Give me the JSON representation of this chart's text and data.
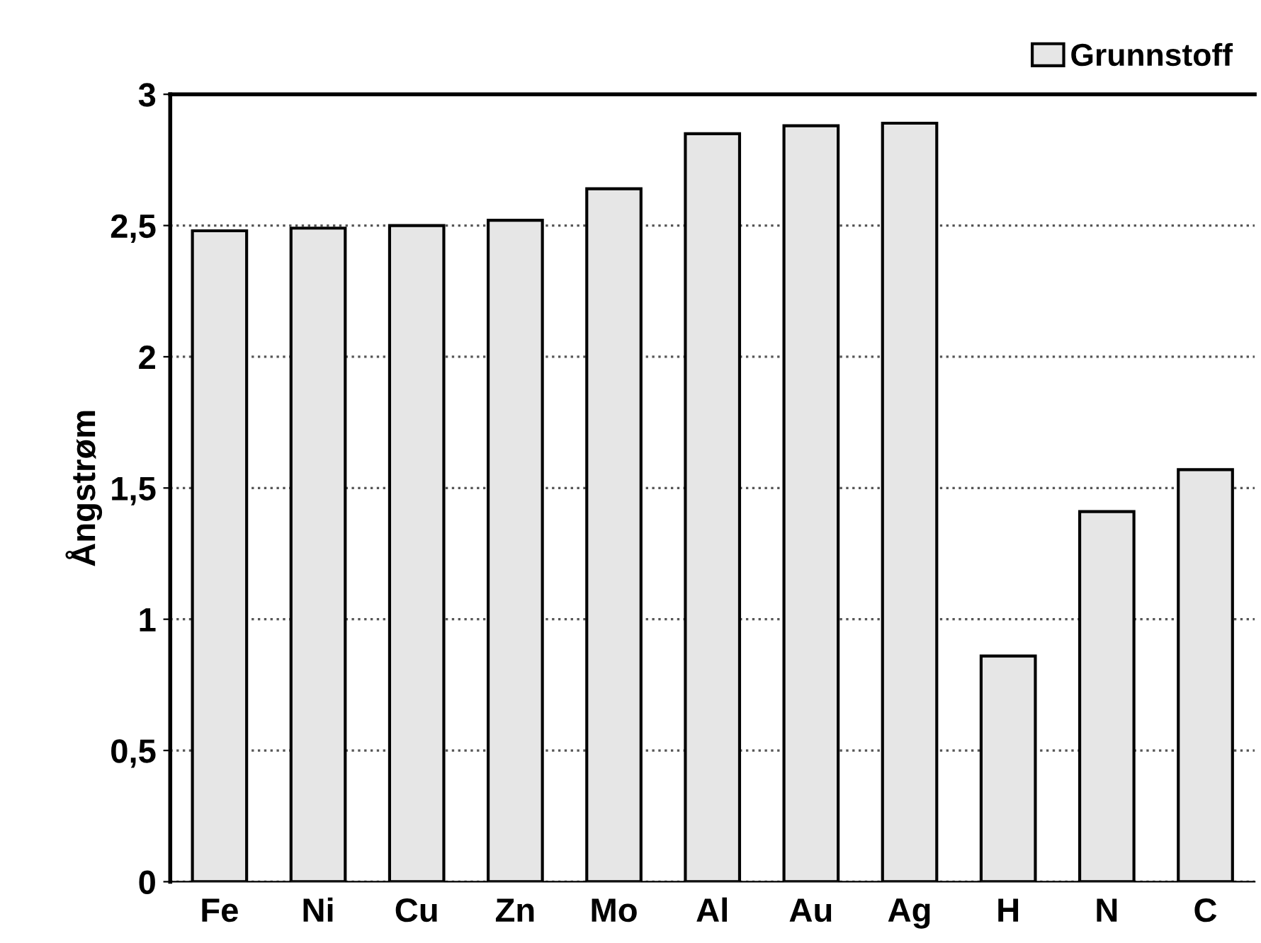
{
  "chart_data": {
    "type": "bar",
    "ylabel": "Ångstrøm",
    "categories": [
      "Fe",
      "Ni",
      "Cu",
      "Zn",
      "Mo",
      "Al",
      "Au",
      "Ag",
      "H",
      "N",
      "C"
    ],
    "series": [
      {
        "name": "Grunnstoff",
        "color": "#e6e6e6",
        "values": [
          2.48,
          2.49,
          2.5,
          2.52,
          2.64,
          2.85,
          2.88,
          2.89,
          0.86,
          1.41,
          1.57
        ]
      }
    ],
    "ylim": [
      0,
      3
    ],
    "yticks": [
      0,
      {
        "value": 0.5,
        "label": "0,5"
      },
      1,
      {
        "value": 1.5,
        "label": "1,5"
      },
      2,
      {
        "value": 2.5,
        "label": "2,5"
      },
      3
    ],
    "grid": "y",
    "legend": "top right"
  }
}
